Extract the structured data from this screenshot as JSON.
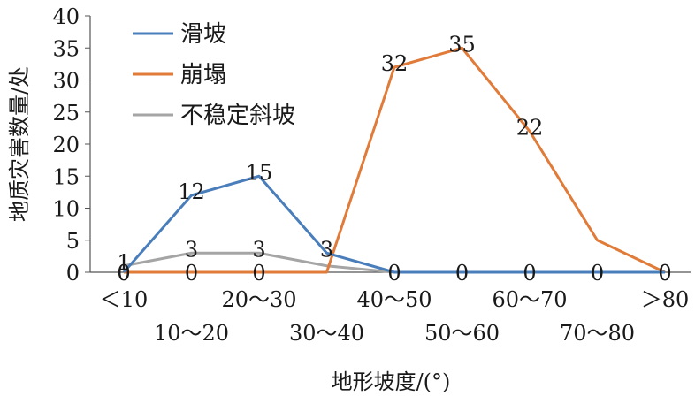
{
  "chart_data": {
    "type": "line",
    "title": "",
    "xlabel": "地形坡度/(°)",
    "ylabel": "地质灾害数量/处",
    "categories": [
      "<10",
      "10~20",
      "20~30",
      "30~40",
      "40~50",
      "50~60",
      "60~70",
      "70~80",
      ">80"
    ],
    "category_labels": [
      "＜10",
      "10～20",
      "20～30",
      "30～40",
      "40～50",
      "50～60",
      "60～70",
      "70～80",
      "＞80"
    ],
    "ylim": [
      0,
      40
    ],
    "yticks": [
      0,
      5,
      10,
      15,
      20,
      25,
      30,
      35,
      40
    ],
    "grid": false,
    "legend": "top-left",
    "series": [
      {
        "name": "滑坡",
        "color": "#4a7ebb",
        "values": [
          0,
          12,
          15,
          3,
          0,
          0,
          0,
          0,
          0
        ],
        "point_labels": [
          "0",
          "12",
          "15",
          "3",
          "0",
          "0",
          "0",
          "0",
          "0"
        ]
      },
      {
        "name": "崩塌",
        "color": "#e07b39",
        "values": [
          0,
          0,
          0,
          0,
          32,
          35,
          22,
          5,
          0
        ],
        "point_labels": [
          "0",
          "0",
          "0",
          "",
          "32",
          "35",
          "22",
          "",
          "0"
        ]
      },
      {
        "name": "不稳定斜坡",
        "color": "#a5a5a5",
        "values": [
          1,
          3,
          3,
          1,
          0,
          0,
          0,
          0,
          0
        ],
        "point_labels": [
          "1",
          "3",
          "3",
          "",
          "",
          "",
          "",
          "",
          ""
        ]
      }
    ]
  }
}
